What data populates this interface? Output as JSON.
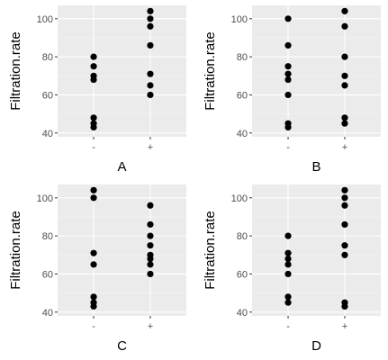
{
  "chart_data": [
    {
      "type": "scatter",
      "xlabel": "A",
      "ylabel": "Filtration.rate",
      "categories": [
        "-",
        "+"
      ],
      "ylim": [
        38,
        107
      ],
      "yticks": [
        40,
        60,
        80,
        100
      ],
      "grid": true,
      "points": [
        {
          "x": "-",
          "y": 80
        },
        {
          "x": "-",
          "y": 75
        },
        {
          "x": "-",
          "y": 70
        },
        {
          "x": "-",
          "y": 68
        },
        {
          "x": "-",
          "y": 48
        },
        {
          "x": "-",
          "y": 45
        },
        {
          "x": "-",
          "y": 43
        },
        {
          "x": "+",
          "y": 104
        },
        {
          "x": "+",
          "y": 100
        },
        {
          "x": "+",
          "y": 96
        },
        {
          "x": "+",
          "y": 86
        },
        {
          "x": "+",
          "y": 71
        },
        {
          "x": "+",
          "y": 65
        },
        {
          "x": "+",
          "y": 60
        }
      ]
    },
    {
      "type": "scatter",
      "xlabel": "B",
      "ylabel": "Filtration.rate",
      "categories": [
        "-",
        "+"
      ],
      "ylim": [
        38,
        107
      ],
      "yticks": [
        40,
        60,
        80,
        100
      ],
      "grid": true,
      "points": [
        {
          "x": "-",
          "y": 100
        },
        {
          "x": "-",
          "y": 86
        },
        {
          "x": "-",
          "y": 75
        },
        {
          "x": "-",
          "y": 71
        },
        {
          "x": "-",
          "y": 68
        },
        {
          "x": "-",
          "y": 60
        },
        {
          "x": "-",
          "y": 45
        },
        {
          "x": "-",
          "y": 43
        },
        {
          "x": "+",
          "y": 104
        },
        {
          "x": "+",
          "y": 96
        },
        {
          "x": "+",
          "y": 80
        },
        {
          "x": "+",
          "y": 70
        },
        {
          "x": "+",
          "y": 65
        },
        {
          "x": "+",
          "y": 48
        },
        {
          "x": "+",
          "y": 45
        }
      ]
    },
    {
      "type": "scatter",
      "xlabel": "C",
      "ylabel": "Filtration.rate",
      "categories": [
        "-",
        "+"
      ],
      "ylim": [
        38,
        107
      ],
      "yticks": [
        40,
        60,
        80,
        100
      ],
      "grid": true,
      "points": [
        {
          "x": "-",
          "y": 104
        },
        {
          "x": "-",
          "y": 100
        },
        {
          "x": "-",
          "y": 71
        },
        {
          "x": "-",
          "y": 65
        },
        {
          "x": "-",
          "y": 48
        },
        {
          "x": "-",
          "y": 45
        },
        {
          "x": "-",
          "y": 43
        },
        {
          "x": "+",
          "y": 96
        },
        {
          "x": "+",
          "y": 86
        },
        {
          "x": "+",
          "y": 80
        },
        {
          "x": "+",
          "y": 75
        },
        {
          "x": "+",
          "y": 70
        },
        {
          "x": "+",
          "y": 68
        },
        {
          "x": "+",
          "y": 65
        },
        {
          "x": "+",
          "y": 60
        }
      ]
    },
    {
      "type": "scatter",
      "xlabel": "D",
      "ylabel": "Filtration.rate",
      "categories": [
        "-",
        "+"
      ],
      "ylim": [
        38,
        107
      ],
      "yticks": [
        40,
        60,
        80,
        100
      ],
      "grid": true,
      "points": [
        {
          "x": "-",
          "y": 80
        },
        {
          "x": "-",
          "y": 71
        },
        {
          "x": "-",
          "y": 68
        },
        {
          "x": "-",
          "y": 65
        },
        {
          "x": "-",
          "y": 60
        },
        {
          "x": "-",
          "y": 48
        },
        {
          "x": "-",
          "y": 45
        },
        {
          "x": "+",
          "y": 104
        },
        {
          "x": "+",
          "y": 100
        },
        {
          "x": "+",
          "y": 96
        },
        {
          "x": "+",
          "y": 86
        },
        {
          "x": "+",
          "y": 75
        },
        {
          "x": "+",
          "y": 70
        },
        {
          "x": "+",
          "y": 45
        },
        {
          "x": "+",
          "y": 43
        }
      ]
    }
  ],
  "colors": {
    "panel_background": "#ebebeb",
    "grid_major": "#ffffff",
    "point": "#000000",
    "tick_text": "#4d4d4d",
    "title_text": "#000000"
  }
}
